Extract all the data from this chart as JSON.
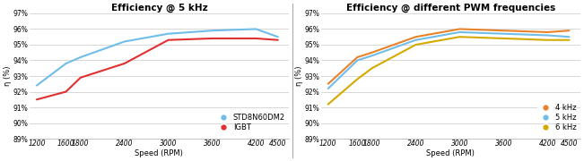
{
  "left_title": "Efficiency @ 5 kHz",
  "right_title": "Efficiency @ different PWM frequencies",
  "ylabel": "η (%)",
  "xlabel": "Speed (RPM)",
  "x_ticks": [
    1200,
    1600,
    1800,
    2400,
    3000,
    3600,
    4200,
    4500
  ],
  "ylim": [
    89,
    97
  ],
  "yticks": [
    89,
    90,
    91,
    92,
    93,
    94,
    95,
    96,
    97
  ],
  "ytick_labels": [
    "89%",
    "90%",
    "91%",
    "92%",
    "93%",
    "94%",
    "95%",
    "96%",
    "97%"
  ],
  "left_blue_x": [
    1200,
    1600,
    1800,
    2400,
    3000,
    3600,
    4200,
    4500
  ],
  "left_blue_y": [
    92.4,
    93.8,
    94.2,
    95.2,
    95.7,
    95.9,
    96.0,
    95.5
  ],
  "left_red_x": [
    1200,
    1600,
    1800,
    2400,
    3000,
    3600,
    4200,
    4500
  ],
  "left_red_y": [
    91.5,
    92.0,
    92.9,
    93.8,
    95.3,
    95.4,
    95.4,
    95.3
  ],
  "right_orange_x": [
    1200,
    1600,
    1800,
    2400,
    3000,
    3600,
    4200,
    4500
  ],
  "right_orange_y": [
    92.5,
    94.2,
    94.5,
    95.5,
    96.0,
    95.9,
    95.8,
    95.9
  ],
  "right_blue_x": [
    1200,
    1600,
    1800,
    2400,
    3000,
    3600,
    4200,
    4500
  ],
  "right_blue_y": [
    92.2,
    94.0,
    94.3,
    95.3,
    95.8,
    95.7,
    95.6,
    95.5
  ],
  "right_yellow_x": [
    1200,
    1600,
    1800,
    2400,
    3000,
    3600,
    4200,
    4500
  ],
  "right_yellow_y": [
    91.2,
    92.8,
    93.5,
    95.0,
    95.5,
    95.4,
    95.3,
    95.3
  ],
  "left_blue_color": "#70bde8",
  "left_red_color": "#e03030",
  "right_orange_color": "#e8822a",
  "right_blue_color": "#70bde8",
  "right_yellow_color": "#d4aa00",
  "left_legend_blue_label": "STD8N60DM2",
  "left_legend_red_label": "IGBT",
  "right_legend_orange_label": "4 kHz",
  "right_legend_blue_label": "5 kHz",
  "right_legend_yellow_label": "6 kHz",
  "bg_color": "#ffffff",
  "grid_color": "#c8c8c8",
  "title_fontsize": 7.5,
  "axis_label_fontsize": 6,
  "tick_fontsize": 5.5,
  "legend_fontsize": 6,
  "line_width": 1.5
}
